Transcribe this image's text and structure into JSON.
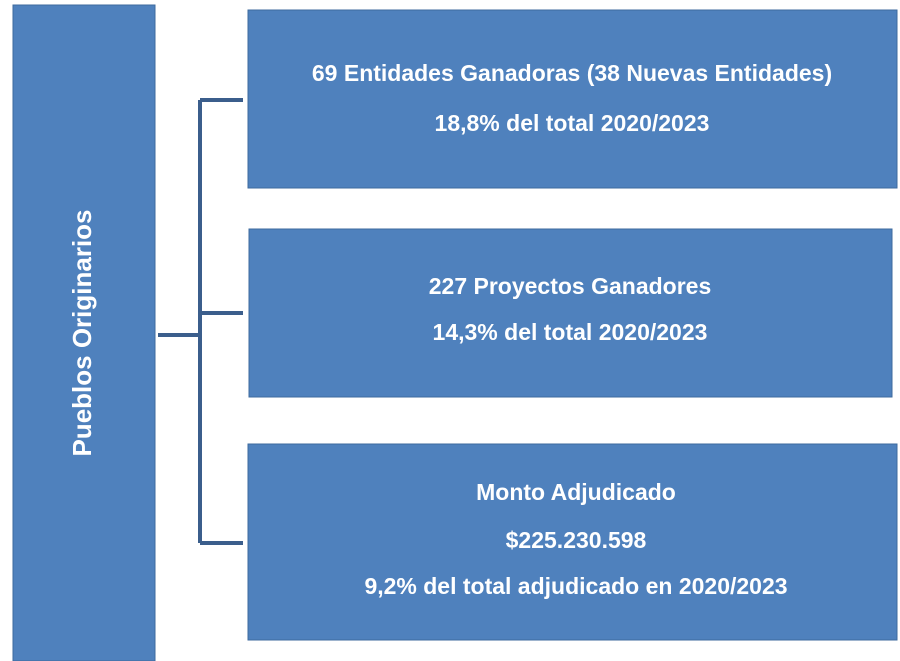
{
  "root": {
    "label": "Pueblos Originarios"
  },
  "nodes": [
    {
      "lines": [
        "69 Entidades Ganadoras (38 Nuevas Entidades)",
        "18,8% del total 2020/2023"
      ]
    },
    {
      "lines": [
        "227 Proyectos Ganadores",
        "14,3% del total 2020/2023"
      ]
    },
    {
      "lines": [
        "Monto Adjudicado",
        "$225.230.598",
        "9,2% del total adjudicado en 2020/2023"
      ]
    }
  ]
}
